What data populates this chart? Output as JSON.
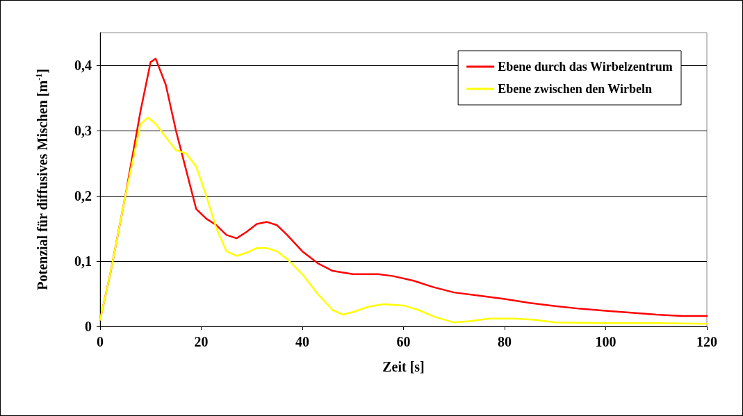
{
  "chart_data": {
    "type": "line",
    "xlabel": "Zeit [s]",
    "ylabel": "Potenzial für diffusives Mischen [m$^{-1}$]",
    "xlim": [
      0,
      120
    ],
    "xticks": [
      0,
      20,
      40,
      60,
      80,
      100,
      120
    ],
    "ylim": [
      0,
      0.45
    ],
    "yticks": [
      {
        "value": 0,
        "label": "0"
      },
      {
        "value": 0.1,
        "label": "0,1"
      },
      {
        "value": 0.2,
        "label": "0,2"
      },
      {
        "value": 0.3,
        "label": "0,3"
      },
      {
        "value": 0.4,
        "label": "0,4"
      }
    ],
    "grid": "y",
    "legend": "top right",
    "marker": "none",
    "line_style": "solid",
    "series": [
      {
        "name": "Ebene durch das Wirbelzentrum",
        "color": "#ff0000",
        "x": [
          0,
          2,
          5,
          8,
          10,
          11,
          13,
          15,
          17,
          19,
          21,
          23,
          25,
          27,
          29,
          31,
          33,
          35,
          37,
          40,
          43,
          46,
          50,
          55,
          58,
          62,
          66,
          70,
          75,
          80,
          85,
          90,
          95,
          100,
          105,
          110,
          115,
          120
        ],
        "values": [
          0.01,
          0.08,
          0.2,
          0.33,
          0.405,
          0.41,
          0.37,
          0.3,
          0.24,
          0.18,
          0.165,
          0.155,
          0.14,
          0.135,
          0.145,
          0.157,
          0.16,
          0.155,
          0.14,
          0.115,
          0.097,
          0.085,
          0.08,
          0.08,
          0.077,
          0.07,
          0.06,
          0.052,
          0.047,
          0.042,
          0.036,
          0.031,
          0.027,
          0.024,
          0.021,
          0.018,
          0.016,
          0.016
        ]
      },
      {
        "name": "Ebene zwischen den Wirbeln",
        "color": "#ffff00",
        "x": [
          0,
          2,
          5,
          8,
          9.5,
          11,
          13,
          15,
          17,
          19,
          21,
          23,
          25,
          27,
          29,
          31,
          33,
          35,
          37,
          40,
          43,
          46,
          48,
          50,
          53,
          56,
          60,
          63,
          66,
          70,
          73,
          77,
          82,
          86,
          90,
          100,
          110,
          120
        ],
        "values": [
          0.01,
          0.08,
          0.2,
          0.31,
          0.32,
          0.31,
          0.29,
          0.27,
          0.265,
          0.245,
          0.2,
          0.15,
          0.115,
          0.108,
          0.113,
          0.12,
          0.12,
          0.115,
          0.103,
          0.08,
          0.05,
          0.025,
          0.018,
          0.022,
          0.03,
          0.034,
          0.032,
          0.025,
          0.015,
          0.006,
          0.008,
          0.012,
          0.012,
          0.01,
          0.006,
          0.005,
          0.005,
          0.004
        ]
      }
    ]
  }
}
